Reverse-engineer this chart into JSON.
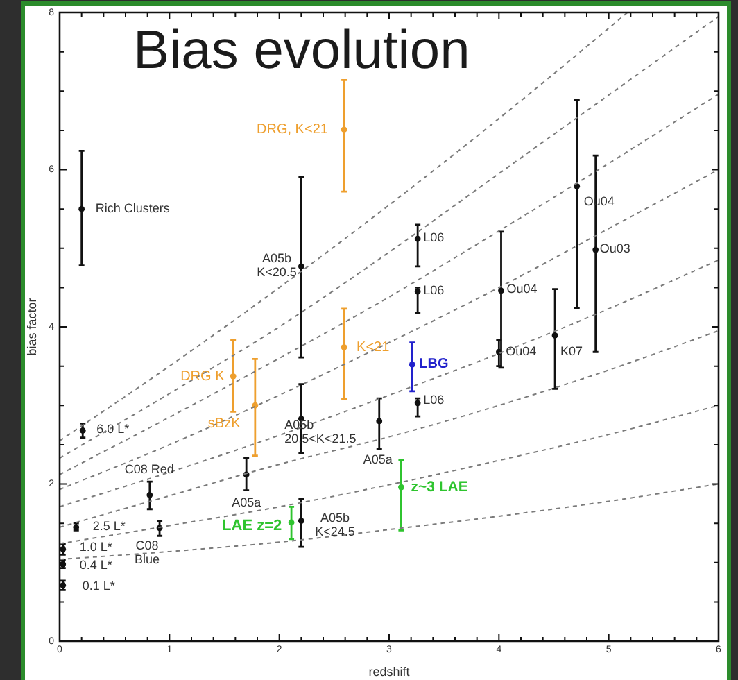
{
  "chart_data": {
    "type": "scatter",
    "title": "Bias evolution",
    "xlabel": "redshift",
    "ylabel": "bias factor",
    "xlim": [
      0,
      6
    ],
    "ylim": [
      0,
      8
    ],
    "xticks": [
      0,
      {
        "value": 0.2,
        "label": null
      },
      {
        "value": 0.4,
        "label": null
      },
      {
        "value": 0.6,
        "label": null
      },
      {
        "value": 0.8,
        "label": null
      },
      1,
      {
        "value": 1.2,
        "label": null
      },
      {
        "value": 1.4,
        "label": null
      },
      {
        "value": 1.6,
        "label": null
      },
      {
        "value": 1.8,
        "label": null
      },
      2,
      {
        "value": 2.2,
        "label": null
      },
      {
        "value": 2.4,
        "label": null
      },
      {
        "value": 2.6,
        "label": null
      },
      {
        "value": 2.8,
        "label": null
      },
      3,
      {
        "value": 3.2,
        "label": null
      },
      {
        "value": 3.4,
        "label": null
      },
      {
        "value": 3.6,
        "label": null
      },
      {
        "value": 3.8,
        "label": null
      },
      4,
      {
        "value": 4.2,
        "label": null
      },
      {
        "value": 4.4,
        "label": null
      },
      {
        "value": 4.6,
        "label": null
      },
      {
        "value": 4.8,
        "label": null
      },
      5,
      {
        "value": 5.2,
        "label": null
      },
      {
        "value": 5.4,
        "label": null
      },
      {
        "value": 5.6,
        "label": null
      },
      {
        "value": 5.8,
        "label": null
      },
      6
    ],
    "yticks": [
      0,
      {
        "value": 0.5,
        "label": null
      },
      {
        "value": 1,
        "label": null
      },
      {
        "value": 1.5,
        "label": null
      },
      2,
      {
        "value": 2.5,
        "label": null
      },
      {
        "value": 3,
        "label": null
      },
      {
        "value": 3.5,
        "label": null
      },
      4,
      {
        "value": 4.5,
        "label": null
      },
      {
        "value": 5,
        "label": null
      },
      {
        "value": 5.5,
        "label": null
      },
      6,
      {
        "value": 6.5,
        "label": null
      },
      {
        "value": 7,
        "label": null
      },
      {
        "value": 7.5,
        "label": null
      },
      8
    ],
    "grid": false,
    "legend": false,
    "marker": "circle",
    "series": [
      {
        "type": "line",
        "color": "#7a7a7a",
        "line_style": "dashed",
        "marker": "none",
        "x": [
          0,
          1,
          2,
          3,
          4,
          5,
          5.17
        ],
        "values": [
          2.55,
          3.5,
          4.5,
          5.55,
          6.65,
          7.8,
          8.0
        ]
      },
      {
        "type": "line",
        "color": "#7a7a7a",
        "line_style": "dashed",
        "marker": "none",
        "x": [
          0,
          1,
          2,
          3,
          4,
          5,
          6
        ],
        "values": [
          2.33,
          3.15,
          4.0,
          4.95,
          5.95,
          6.95,
          7.95
        ]
      },
      {
        "type": "line",
        "color": "#7a7a7a",
        "line_style": "dashed",
        "marker": "none",
        "x": [
          0,
          1,
          2,
          3,
          4,
          5,
          6
        ],
        "values": [
          2.12,
          2.85,
          3.6,
          4.38,
          5.22,
          6.08,
          6.96
        ]
      },
      {
        "type": "line",
        "color": "#7a7a7a",
        "line_style": "dashed",
        "marker": "none",
        "x": [
          0,
          1,
          2,
          3,
          4,
          5,
          6
        ],
        "values": [
          1.93,
          2.5,
          3.13,
          3.8,
          4.5,
          5.25,
          6.0
        ]
      },
      {
        "type": "line",
        "color": "#7a7a7a",
        "line_style": "dashed",
        "marker": "none",
        "x": [
          0,
          1,
          2,
          3,
          4,
          5,
          6
        ],
        "values": [
          1.71,
          2.15,
          2.62,
          3.13,
          3.66,
          4.23,
          4.85
        ]
      },
      {
        "type": "line",
        "color": "#7a7a7a",
        "line_style": "dashed",
        "marker": "none",
        "x": [
          0,
          1,
          2,
          3,
          4,
          5,
          6
        ],
        "values": [
          1.45,
          1.85,
          2.25,
          2.6,
          3.0,
          3.45,
          3.95
        ]
      },
      {
        "type": "line",
        "color": "#7a7a7a",
        "line_style": "dashed",
        "marker": "none",
        "x": [
          0,
          1,
          2,
          3,
          4,
          5,
          6
        ],
        "values": [
          1.24,
          1.47,
          1.71,
          1.99,
          2.3,
          2.63,
          3.0
        ]
      },
      {
        "type": "line",
        "color": "#7a7a7a",
        "line_style": "dashed",
        "marker": "none",
        "x": [
          0,
          1,
          2,
          3,
          4,
          5,
          6
        ],
        "values": [
          1.04,
          1.14,
          1.26,
          1.42,
          1.59,
          1.78,
          2.0
        ]
      },
      {
        "color": "#111111",
        "x": [
          0.2,
          0.21,
          0.15,
          0.03,
          0.03,
          0.03,
          0.82,
          0.91,
          1.7,
          2.2,
          2.2,
          2.2,
          2.91,
          3.26,
          3.26,
          3.26,
          4.02,
          4.0,
          4.51,
          4.71,
          4.88
        ],
        "values": [
          5.5,
          2.68,
          1.45,
          1.17,
          0.98,
          0.71,
          1.86,
          1.44,
          2.12,
          4.77,
          2.83,
          1.53,
          2.8,
          5.12,
          4.45,
          3.03,
          4.46,
          3.68,
          3.89,
          5.79,
          4.98
        ],
        "errors": [
          [
            4.78,
            6.24
          ],
          [
            2.59,
            2.77
          ],
          [
            1.41,
            1.5
          ],
          [
            1.1,
            1.24
          ],
          [
            0.93,
            1.03
          ],
          [
            0.65,
            0.77
          ],
          [
            1.68,
            2.03
          ],
          [
            1.34,
            1.53
          ],
          [
            1.92,
            2.33
          ],
          [
            3.61,
            5.91
          ],
          [
            2.39,
            3.27
          ],
          [
            1.2,
            1.81
          ],
          [
            2.45,
            3.09
          ],
          [
            4.77,
            5.3
          ],
          [
            4.18,
            4.5
          ],
          [
            2.86,
            3.09
          ],
          [
            3.48,
            5.21
          ],
          [
            3.5,
            3.83
          ],
          [
            3.21,
            4.48
          ],
          [
            4.24,
            6.89
          ],
          [
            3.68,
            6.18
          ]
        ]
      },
      {
        "color": "#ee9f2e",
        "x": [
          2.59,
          1.58,
          1.78,
          2.59
        ],
        "values": [
          6.51,
          3.37,
          3.0,
          3.74
        ],
        "errors": [
          [
            5.72,
            7.14
          ],
          [
            2.92,
            3.83
          ],
          [
            2.36,
            3.59
          ],
          [
            3.08,
            4.23
          ]
        ]
      },
      {
        "color": "#2222cc",
        "x": [
          3.21
        ],
        "values": [
          3.52
        ],
        "errors": [
          [
            3.18,
            3.8
          ]
        ]
      },
      {
        "color": "#2ec42e",
        "x": [
          2.11,
          3.11
        ],
        "values": [
          1.51,
          1.96
        ],
        "errors": [
          [
            1.3,
            1.71
          ],
          [
            1.41,
            2.3
          ]
        ]
      }
    ],
    "annotations": [
      {
        "text": "Rich Clusters",
        "x": 0.2,
        "y": 5.5
      },
      {
        "text": "6.0 L*",
        "x": 0.21,
        "y": 2.68
      },
      {
        "text": "2.5 L*",
        "x": 0.15,
        "y": 1.45
      },
      {
        "text": "1.0 L*",
        "x": 0.03,
        "y": 1.17
      },
      {
        "text": "0.4 L*",
        "x": 0.03,
        "y": 0.98
      },
      {
        "text": "0.1 L*",
        "x": 0.03,
        "y": 0.71
      },
      {
        "text": "C08 Red",
        "x": 0.82,
        "y": 1.86
      },
      {
        "text": "C08\nBlue",
        "x": 0.91,
        "y": 1.44
      },
      {
        "text": "A05a",
        "x": 1.7,
        "y": 2.12
      },
      {
        "text": "A05b\nK<20.5",
        "x": 2.2,
        "y": 4.77
      },
      {
        "text": "A05b\n20.5<K<21.5",
        "x": 2.2,
        "y": 2.83
      },
      {
        "text": "A05b\nK<24.5",
        "x": 2.2,
        "y": 1.53
      },
      {
        "text": "A05a",
        "x": 2.91,
        "y": 2.8
      },
      {
        "text": "L06",
        "x": 3.26,
        "y": 5.12
      },
      {
        "text": "L06",
        "x": 3.26,
        "y": 4.45
      },
      {
        "text": "L06",
        "x": 3.26,
        "y": 3.03
      },
      {
        "text": "Ou04",
        "x": 4.02,
        "y": 4.46
      },
      {
        "text": "Ou04",
        "x": 4.0,
        "y": 3.68
      },
      {
        "text": "K07",
        "x": 4.51,
        "y": 3.89
      },
      {
        "text": "Ou04",
        "x": 4.71,
        "y": 5.79
      },
      {
        "text": "Ou03",
        "x": 4.88,
        "y": 4.98
      },
      {
        "text": "DRG, K<21",
        "x": 2.59,
        "y": 6.51
      },
      {
        "text": "DRG K",
        "x": 1.58,
        "y": 3.37
      },
      {
        "text": "sBzK",
        "x": 1.78,
        "y": 3.0
      },
      {
        "text": "K<21",
        "x": 2.59,
        "y": 3.74
      },
      {
        "text": "LBG",
        "x": 3.21,
        "y": 3.52
      },
      {
        "text": "LAE z=2",
        "x": 2.11,
        "y": 1.51
      },
      {
        "text": "z~3 LAE",
        "x": 3.11,
        "y": 1.96
      }
    ]
  }
}
